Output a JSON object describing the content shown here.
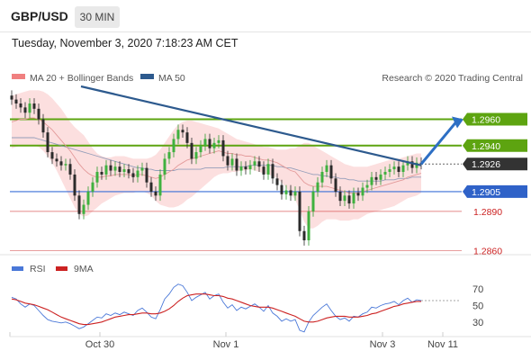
{
  "header": {
    "pair": "GBP/USD",
    "timeframe": "30 MIN",
    "datetime": "Tuesday, November 3, 2020 7:18:23 AM CET"
  },
  "legend": {
    "items": [
      {
        "name": "MA 20 + Bollinger Bands",
        "color": "#f08080"
      },
      {
        "name": "MA 50",
        "color": "#2d5a8e"
      }
    ],
    "credit": "Research © 2020 Trading Central"
  },
  "chart_data": [
    {
      "type": "line",
      "title": "GBP/USD 30 MIN",
      "y_range": [
        1.2855,
        1.2985
      ],
      "x_ticks": [
        "Oct 30",
        "Nov 1",
        "Nov 3",
        "Nov 11"
      ],
      "price_levels": [
        {
          "value": 1.296,
          "label": "1.2960",
          "style": "green-line",
          "color": "#5da410"
        },
        {
          "value": 1.294,
          "label": "1.2940",
          "style": "green-line",
          "color": "#5da410"
        },
        {
          "value": 1.2926,
          "label": "1.2926",
          "style": "current",
          "color": "#333333"
        },
        {
          "value": 1.2905,
          "label": "1.2905",
          "style": "blue-line",
          "color": "#3a6fd8"
        },
        {
          "value": 1.289,
          "label": "1.2890",
          "style": "red-line",
          "color": "#cc2222"
        },
        {
          "value": 1.286,
          "label": "1.2860",
          "style": "red-line",
          "color": "#cc2222"
        }
      ],
      "close": [
        1.2975,
        1.2972,
        1.2969,
        1.2965,
        1.2972,
        1.2968,
        1.296,
        1.295,
        1.2935,
        1.293,
        1.2928,
        1.2925,
        1.2926,
        1.2918,
        1.2902,
        1.2888,
        1.2895,
        1.2905,
        1.2912,
        1.292,
        1.2918,
        1.2925,
        1.2921,
        1.2924,
        1.292,
        1.2922,
        1.2919,
        1.2916,
        1.2921,
        1.2923,
        1.2912,
        1.2905,
        1.2902,
        1.2918,
        1.293,
        1.2935,
        1.2945,
        1.2952,
        1.295,
        1.2942,
        1.293,
        1.2935,
        1.294,
        1.2945,
        1.2938,
        1.2942,
        1.2944,
        1.2932,
        1.2925,
        1.293,
        1.2921,
        1.2924,
        1.2922,
        1.2925,
        1.2928,
        1.2924,
        1.2918,
        1.2926,
        1.2915,
        1.291,
        1.2903,
        1.2906,
        1.2902,
        1.2905,
        1.2875,
        1.2868,
        1.289,
        1.2905,
        1.2912,
        1.292,
        1.2925,
        1.2915,
        1.2905,
        1.2898,
        1.2902,
        1.2896,
        1.2904,
        1.2902,
        1.2908,
        1.291,
        1.2916,
        1.2914,
        1.2918,
        1.292,
        1.2922,
        1.2924,
        1.292,
        1.2925,
        1.2928,
        1.2923,
        1.2927,
        1.2926
      ],
      "ma20": [
        1.2958,
        1.2959,
        1.296,
        1.296,
        1.2961,
        1.2961,
        1.296,
        1.2958,
        1.2955,
        1.2952,
        1.2948,
        1.2944,
        1.294,
        1.2936,
        1.2931,
        1.2926,
        1.2922,
        1.2919,
        1.2917,
        1.2916,
        1.2916,
        1.2917,
        1.2917,
        1.2918,
        1.2918,
        1.2918,
        1.2918,
        1.2917,
        1.2918,
        1.2918,
        1.2917,
        1.2916,
        1.2915,
        1.2916,
        1.2918,
        1.292,
        1.2922,
        1.2925,
        1.2927,
        1.2929,
        1.293,
        1.2931,
        1.2932,
        1.2933,
        1.2934,
        1.2935,
        1.2936,
        1.2935,
        1.2934,
        1.2934,
        1.2933,
        1.2933,
        1.2932,
        1.2932,
        1.2931,
        1.293,
        1.2929,
        1.2929,
        1.2928,
        1.2927,
        1.2925,
        1.2923,
        1.2921,
        1.292,
        1.2916,
        1.2912,
        1.291,
        1.2909,
        1.2909,
        1.2909,
        1.2909,
        1.2908,
        1.2907,
        1.2906,
        1.2905,
        1.2904,
        1.2904,
        1.2904,
        1.2905,
        1.2906,
        1.2907,
        1.2908,
        1.2909,
        1.291,
        1.2911,
        1.2912,
        1.2913,
        1.2914,
        1.2916,
        1.2917,
        1.2918,
        1.2919
      ],
      "bb_upper": [
        1.2978,
        1.2979,
        1.298,
        1.2981,
        1.2982,
        1.2982,
        1.2982,
        1.2981,
        1.2979,
        1.2976,
        1.2972,
        1.2968,
        1.2963,
        1.2958,
        1.2954,
        1.2951,
        1.2948,
        1.2943,
        1.2938,
        1.2934,
        1.2932,
        1.2931,
        1.2931,
        1.2932,
        1.2932,
        1.2932,
        1.2931,
        1.293,
        1.293,
        1.293,
        1.293,
        1.2931,
        1.2933,
        1.2937,
        1.2942,
        1.2947,
        1.2952,
        1.2956,
        1.2958,
        1.2959,
        1.2959,
        1.2958,
        1.2957,
        1.2956,
        1.2955,
        1.2954,
        1.2953,
        1.2951,
        1.2949,
        1.2947,
        1.2945,
        1.2944,
        1.2943,
        1.2942,
        1.2941,
        1.294,
        1.2939,
        1.2939,
        1.2938,
        1.2937,
        1.2937,
        1.2937,
        1.2938,
        1.2938,
        1.294,
        1.2942,
        1.2942,
        1.294,
        1.2938,
        1.2936,
        1.2934,
        1.2932,
        1.293,
        1.2928,
        1.2926,
        1.2925,
        1.2924,
        1.2924,
        1.2924,
        1.2924,
        1.2925,
        1.2926,
        1.2927,
        1.2928,
        1.2929,
        1.293,
        1.293,
        1.2931,
        1.2932,
        1.2933,
        1.2934,
        1.2934
      ],
      "bb_lower": [
        1.2938,
        1.2939,
        1.294,
        1.294,
        1.294,
        1.294,
        1.2939,
        1.2936,
        1.2932,
        1.2927,
        1.2921,
        1.2914,
        1.2907,
        1.29,
        1.2893,
        1.2888,
        1.2886,
        1.2887,
        1.289,
        1.2893,
        1.2896,
        1.2898,
        1.29,
        1.2902,
        1.2903,
        1.2904,
        1.2904,
        1.2904,
        1.2905,
        1.2905,
        1.2904,
        1.2902,
        1.2898,
        1.2895,
        1.2894,
        1.2893,
        1.2893,
        1.2894,
        1.2896,
        1.2899,
        1.2901,
        1.2904,
        1.2907,
        1.291,
        1.2913,
        1.2916,
        1.2918,
        1.2919,
        1.2919,
        1.292,
        1.292,
        1.2921,
        1.2921,
        1.2922,
        1.2921,
        1.292,
        1.2919,
        1.2918,
        1.2917,
        1.2915,
        1.2912,
        1.2908,
        1.2903,
        1.2899,
        1.2891,
        1.2882,
        1.2877,
        1.2877,
        1.2879,
        1.2882,
        1.2884,
        1.2884,
        1.2884,
        1.2883,
        1.2883,
        1.2883,
        1.2884,
        1.2884,
        1.2886,
        1.2888,
        1.2889,
        1.289,
        1.2891,
        1.2892,
        1.2893,
        1.2894,
        1.2896,
        1.2898,
        1.29,
        1.2901,
        1.2902,
        1.2904
      ],
      "ma50": [
        1.2946,
        1.2946,
        1.2946,
        1.2946,
        1.2946,
        1.2946,
        1.2945,
        1.2944,
        1.2943,
        1.2942,
        1.2941,
        1.294,
        1.2939,
        1.2938,
        1.2937,
        1.2936,
        1.2935,
        1.2934,
        1.2933,
        1.2932,
        1.2931,
        1.293,
        1.2929,
        1.2928,
        1.2927,
        1.2926,
        1.2925,
        1.2924,
        1.2923,
        1.2923,
        1.2922,
        1.2922,
        1.2921,
        1.2921,
        1.2921,
        1.2921,
        1.2921,
        1.2922,
        1.2922,
        1.2922,
        1.2922,
        1.2922,
        1.2922,
        1.2923,
        1.2923,
        1.2923,
        1.2923,
        1.2923,
        1.2924,
        1.2924,
        1.2924,
        1.2924,
        1.2924,
        1.2925,
        1.2925,
        1.2925,
        1.2925,
        1.2925,
        1.2925,
        1.2924,
        1.2924,
        1.2923,
        1.2923,
        1.2922,
        1.2921,
        1.292,
        1.2919,
        1.2918,
        1.2918,
        1.2917,
        1.2917,
        1.2916,
        1.2916,
        1.2915,
        1.2915,
        1.2914,
        1.2914,
        1.2913,
        1.2913,
        1.2913,
        1.2913,
        1.2913,
        1.2913,
        1.2914,
        1.2914,
        1.2914,
        1.2915,
        1.2915,
        1.2915,
        1.2916,
        1.2916,
        1.2916
      ],
      "trendline": {
        "from": 1.2985,
        "to": 1.2925
      },
      "forecast": {
        "from": 1.2926,
        "to": 1.296
      }
    },
    {
      "type": "line",
      "title": "RSI",
      "y_range": [
        20,
        80
      ],
      "y_ticks": [
        70,
        50,
        30
      ],
      "series": [
        {
          "name": "RSI",
          "color": "#4a78d8",
          "values": [
            60,
            58,
            52,
            48,
            52,
            50,
            44,
            38,
            33,
            31,
            30,
            29,
            30,
            28,
            25,
            22,
            24,
            28,
            32,
            36,
            35,
            40,
            38,
            41,
            39,
            42,
            40,
            38,
            44,
            47,
            42,
            36,
            34,
            45,
            58,
            64,
            72,
            76,
            74,
            66,
            56,
            60,
            63,
            66,
            58,
            62,
            64,
            54,
            47,
            51,
            44,
            48,
            46,
            49,
            52,
            48,
            43,
            50,
            41,
            37,
            31,
            34,
            31,
            33,
            20,
            18,
            30,
            38,
            43,
            48,
            52,
            44,
            37,
            33,
            35,
            31,
            37,
            36,
            40,
            42,
            48,
            47,
            50,
            52,
            53,
            55,
            51,
            56,
            59,
            54,
            57,
            56
          ]
        },
        {
          "name": "9MA",
          "color": "#cc2222",
          "values": [
            58,
            57,
            55,
            53,
            52,
            51,
            49,
            47,
            45,
            42,
            39,
            36,
            34,
            32,
            30,
            28,
            27,
            27,
            28,
            29,
            30,
            32,
            34,
            36,
            37,
            38,
            39,
            39,
            40,
            41,
            41,
            40,
            40,
            41,
            43,
            46,
            50,
            55,
            59,
            62,
            63,
            64,
            64,
            64,
            63,
            62,
            62,
            61,
            59,
            58,
            56,
            54,
            52,
            50,
            49,
            48,
            48,
            48,
            47,
            45,
            43,
            41,
            39,
            37,
            34,
            31,
            30,
            30,
            31,
            33,
            35,
            36,
            37,
            37,
            37,
            36,
            36,
            36,
            37,
            38,
            40,
            41,
            43,
            45,
            47,
            49,
            50,
            52,
            53,
            54,
            55,
            55
          ]
        }
      ]
    }
  ]
}
